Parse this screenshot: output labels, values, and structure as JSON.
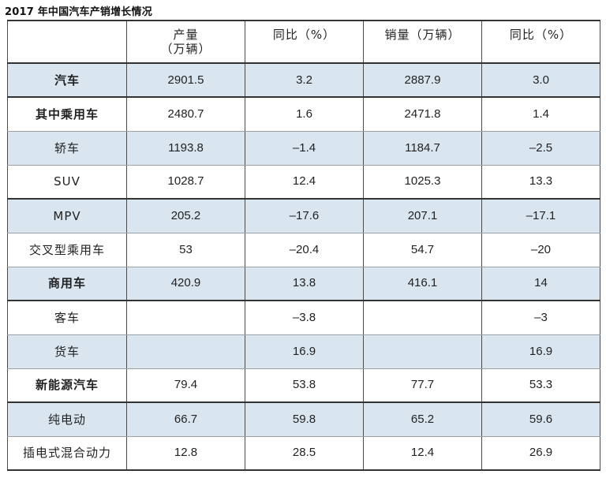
{
  "title": "2017 年中国汽车产销增长情况",
  "table": {
    "headers": [
      "",
      "产量（万辆）",
      "同比（%）",
      "销量（万辆）",
      "同比（%）"
    ],
    "header_production_line1": "产量",
    "header_production_line2": "（万辆）",
    "rows": [
      {
        "label": "汽车",
        "bold": true,
        "shade": true,
        "group": false,
        "values": [
          "2901.5",
          "3.2",
          "2887.9",
          "3.0"
        ]
      },
      {
        "label": "其中乘用车",
        "bold": true,
        "shade": false,
        "group": true,
        "values": [
          "2480.7",
          "1.6",
          "2471.8",
          "1.4"
        ]
      },
      {
        "label": "轿车",
        "bold": false,
        "shade": true,
        "group": false,
        "values": [
          "1193.8",
          "–1.4",
          "1184.7",
          "–2.5"
        ]
      },
      {
        "label": "SUV",
        "bold": false,
        "shade": false,
        "group": false,
        "values": [
          "1028.7",
          "12.4",
          "1025.3",
          "13.3"
        ]
      },
      {
        "label": "MPV",
        "bold": false,
        "shade": true,
        "group": true,
        "values": [
          "205.2",
          "–17.6",
          "207.1",
          "–17.1"
        ]
      },
      {
        "label": "交叉型乘用车",
        "bold": false,
        "shade": false,
        "group": false,
        "values": [
          "53",
          "–20.4",
          "54.7",
          "–20"
        ]
      },
      {
        "label": "商用车",
        "bold": true,
        "shade": true,
        "group": false,
        "values": [
          "420.9",
          "13.8",
          "416.1",
          "14"
        ]
      },
      {
        "label": "客车",
        "bold": false,
        "shade": false,
        "group": true,
        "values": [
          "",
          "–3.8",
          "",
          "–3"
        ]
      },
      {
        "label": "货车",
        "bold": false,
        "shade": true,
        "group": false,
        "values": [
          "",
          "16.9",
          "",
          "16.9"
        ]
      },
      {
        "label": "新能源汽车",
        "bold": true,
        "shade": false,
        "group": false,
        "values": [
          "79.4",
          "53.8",
          "77.7",
          "53.3"
        ]
      },
      {
        "label": "纯电动",
        "bold": false,
        "shade": true,
        "group": true,
        "values": [
          "66.7",
          "59.8",
          "65.2",
          "59.6"
        ]
      },
      {
        "label": "插电式混合动力",
        "bold": false,
        "shade": false,
        "group": false,
        "values": [
          "12.8",
          "28.5",
          "12.4",
          "26.9"
        ]
      }
    ]
  },
  "colors": {
    "row_shade": "#d9e6f0",
    "rule": "#333333",
    "text": "#222222"
  }
}
